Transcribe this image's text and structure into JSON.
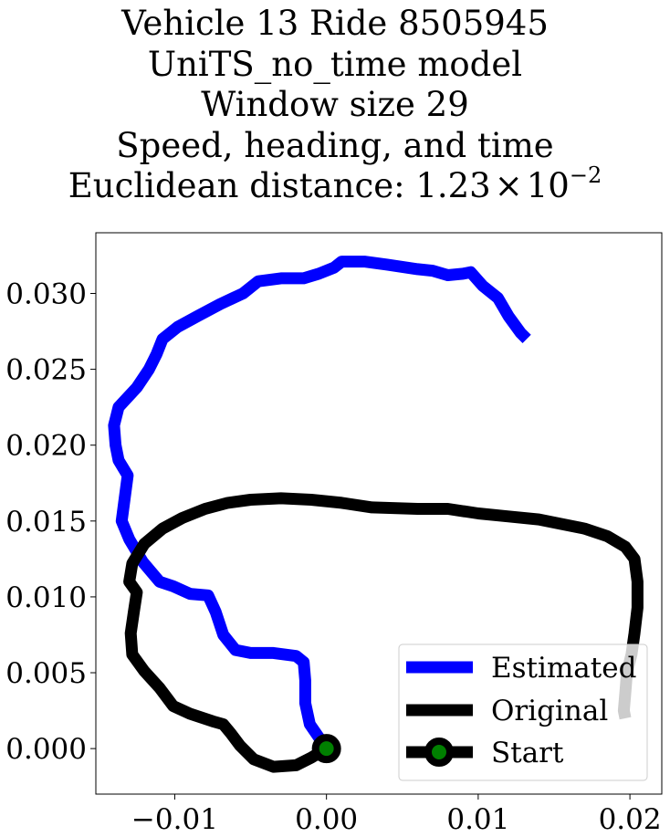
{
  "chart_data": {
    "type": "line",
    "title": {
      "line1": "Vehicle 13 Ride 8505945",
      "line2": "UniTS_no_time model",
      "line3": "Window size 29",
      "line4": "Speed, heading, and time",
      "line5_prefix": "Euclidean distance: ",
      "line5_mantissa": "1.23",
      "line5_times": "×",
      "line5_base": "10",
      "line5_exponent": "−2"
    },
    "xlabel": "",
    "ylabel": "",
    "xlim": [
      -0.0152,
      0.0221
    ],
    "ylim": [
      -0.003,
      0.034
    ],
    "xticks": [
      -0.01,
      0.0,
      0.01,
      0.02
    ],
    "xtick_labels": [
      "−0.01",
      "0.00",
      "0.01",
      "0.02"
    ],
    "yticks": [
      0.0,
      0.005,
      0.01,
      0.015,
      0.02,
      0.025,
      0.03
    ],
    "ytick_labels": [
      "0.000",
      "0.005",
      "0.010",
      "0.015",
      "0.020",
      "0.025",
      "0.030"
    ],
    "grid": false,
    "legend": {
      "placement": "lower-right",
      "entries": [
        "Estimated",
        "Original",
        "Start"
      ]
    },
    "series": [
      {
        "name": "Estimated",
        "color": "#0000ff",
        "points": [
          [
            0.0,
            0.0
          ],
          [
            -0.0011,
            0.0016
          ],
          [
            -0.0014,
            0.003
          ],
          [
            -0.0014,
            0.0045
          ],
          [
            -0.0015,
            0.0057
          ],
          [
            -0.002,
            0.0061
          ],
          [
            -0.0035,
            0.0063
          ],
          [
            -0.005,
            0.0063
          ],
          [
            -0.006,
            0.0065
          ],
          [
            -0.0068,
            0.0075
          ],
          [
            -0.0073,
            0.009
          ],
          [
            -0.0078,
            0.0101
          ],
          [
            -0.009,
            0.0102
          ],
          [
            -0.0101,
            0.0107
          ],
          [
            -0.011,
            0.011
          ],
          [
            -0.0121,
            0.0123
          ],
          [
            -0.013,
            0.0138
          ],
          [
            -0.0135,
            0.015
          ],
          [
            -0.0133,
            0.0165
          ],
          [
            -0.0131,
            0.018
          ],
          [
            -0.0137,
            0.019
          ],
          [
            -0.0139,
            0.02
          ],
          [
            -0.014,
            0.0213
          ],
          [
            -0.0137,
            0.0225
          ],
          [
            -0.0125,
            0.0238
          ],
          [
            -0.0117,
            0.025
          ],
          [
            -0.0112,
            0.026
          ],
          [
            -0.0108,
            0.027
          ],
          [
            -0.0098,
            0.0278
          ],
          [
            -0.0085,
            0.0285
          ],
          [
            -0.007,
            0.0293
          ],
          [
            -0.0055,
            0.03
          ],
          [
            -0.0045,
            0.0308
          ],
          [
            -0.003,
            0.031
          ],
          [
            -0.0015,
            0.031
          ],
          [
            -0.0005,
            0.0313
          ],
          [
            0.0005,
            0.0317
          ],
          [
            0.001,
            0.0321
          ],
          [
            0.0025,
            0.0321
          ],
          [
            0.004,
            0.0319
          ],
          [
            0.006,
            0.0316
          ],
          [
            0.007,
            0.0315
          ],
          [
            0.008,
            0.0312
          ],
          [
            0.009,
            0.0313
          ],
          [
            0.0095,
            0.0314
          ],
          [
            0.0103,
            0.0305
          ],
          [
            0.0113,
            0.0297
          ],
          [
            0.012,
            0.0285
          ],
          [
            0.0128,
            0.0274
          ],
          [
            0.0132,
            0.027
          ]
        ]
      },
      {
        "name": "Original",
        "color": "#000000",
        "points": [
          [
            0.0,
            0.0
          ],
          [
            -0.001,
            -0.0006
          ],
          [
            -0.002,
            -0.0011
          ],
          [
            -0.0035,
            -0.0012
          ],
          [
            -0.0048,
            -0.0007
          ],
          [
            -0.0057,
            0.0002
          ],
          [
            -0.0063,
            0.001
          ],
          [
            -0.0068,
            0.0016
          ],
          [
            -0.0075,
            0.0018
          ],
          [
            -0.009,
            0.0023
          ],
          [
            -0.0101,
            0.0028
          ],
          [
            -0.011,
            0.004
          ],
          [
            -0.012,
            0.0051
          ],
          [
            -0.0128,
            0.0062
          ],
          [
            -0.0129,
            0.0076
          ],
          [
            -0.0127,
            0.009
          ],
          [
            -0.0125,
            0.0103
          ],
          [
            -0.013,
            0.011
          ],
          [
            -0.0128,
            0.0122
          ],
          [
            -0.012,
            0.0135
          ],
          [
            -0.0108,
            0.0145
          ],
          [
            -0.0095,
            0.0152
          ],
          [
            -0.008,
            0.0158
          ],
          [
            -0.0065,
            0.0162
          ],
          [
            -0.005,
            0.0164
          ],
          [
            -0.003,
            0.0165
          ],
          [
            -0.001,
            0.0164
          ],
          [
            0.001,
            0.0162
          ],
          [
            0.003,
            0.0159
          ],
          [
            0.006,
            0.0158
          ],
          [
            0.008,
            0.0158
          ],
          [
            0.01,
            0.0155
          ],
          [
            0.012,
            0.0153
          ],
          [
            0.014,
            0.0151
          ],
          [
            0.0155,
            0.0148
          ],
          [
            0.017,
            0.0145
          ],
          [
            0.0185,
            0.014
          ],
          [
            0.0197,
            0.0133
          ],
          [
            0.0203,
            0.0125
          ],
          [
            0.0205,
            0.011
          ],
          [
            0.0205,
            0.0093
          ],
          [
            0.0203,
            0.0076
          ],
          [
            0.0201,
            0.0062
          ],
          [
            0.0198,
            0.005
          ],
          [
            0.0197,
            0.0037
          ],
          [
            0.0196,
            0.0025
          ],
          [
            0.0197,
            0.002
          ]
        ]
      },
      {
        "name": "Start",
        "color": "#008000",
        "edge_color": "#000000",
        "points": [
          [
            0.0,
            0.0
          ]
        ]
      }
    ]
  }
}
